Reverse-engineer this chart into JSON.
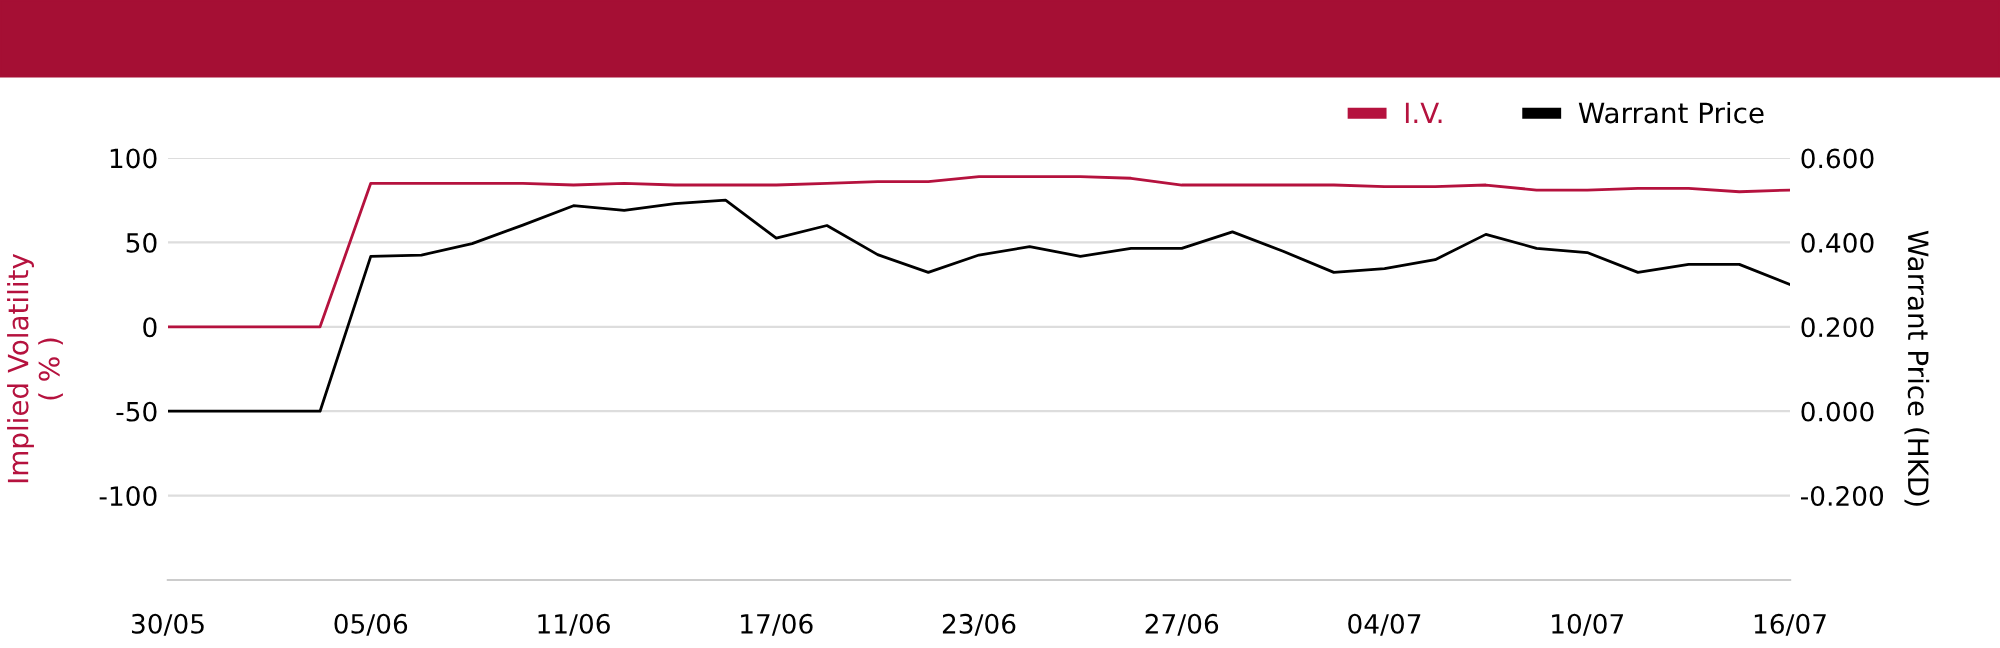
{
  "chart_data": {
    "type": "line",
    "categories": [
      "30/05",
      null,
      null,
      null,
      "05/06",
      null,
      null,
      null,
      "11/06",
      null,
      null,
      null,
      "17/06",
      null,
      null,
      null,
      "23/06",
      null,
      null,
      null,
      "27/06",
      null,
      null,
      null,
      "04/07",
      null,
      null,
      null,
      "10/07",
      null,
      null,
      null,
      "16/07"
    ],
    "series": [
      {
        "name": "I.V.",
        "color": "#b5123e",
        "values": [
          0,
          0,
          0,
          0,
          85,
          85,
          85,
          85,
          84,
          85,
          84,
          84,
          84,
          85,
          86,
          86,
          89,
          89,
          89,
          88,
          84,
          84,
          84,
          84,
          83,
          83,
          84,
          81,
          81,
          82,
          82,
          80,
          81
        ]
      },
      {
        "name": "Warrant Price",
        "color": "#000000",
        "axis": "y2",
        "values": [
          0,
          0,
          0,
          0,
          0.367,
          0.37,
          0.397,
          0.441,
          0.487,
          0.476,
          0.492,
          0.5,
          0.41,
          0.44,
          0.371,
          0.329,
          0.37,
          0.39,
          0.367,
          0.386,
          0.386,
          0.425,
          0.379,
          0.329,
          0.338,
          0.359,
          0.419,
          0.386,
          0.376,
          0.329,
          0.348,
          0.348,
          0.3
        ]
      }
    ],
    "ylabel": "Implied Volatility\n( % )",
    "y2label": "Warrant Price (HKD)",
    "ylim": [
      -150,
      100
    ],
    "yticks": [
      -100,
      -50,
      0,
      50,
      100
    ],
    "y2lim": [
      -0.4,
      0.6
    ],
    "y2ticks": [
      {
        "value": -0.2,
        "label": "-0.200"
      },
      {
        "value": 0,
        "label": "0.000"
      },
      {
        "value": 0.2,
        "label": "0.200"
      },
      {
        "value": 0.4,
        "label": "0.400"
      },
      {
        "value": 0.6,
        "label": "0.600"
      }
    ],
    "grid": "y",
    "legend": "top right",
    "marker": "none",
    "line_style": "solid"
  }
}
